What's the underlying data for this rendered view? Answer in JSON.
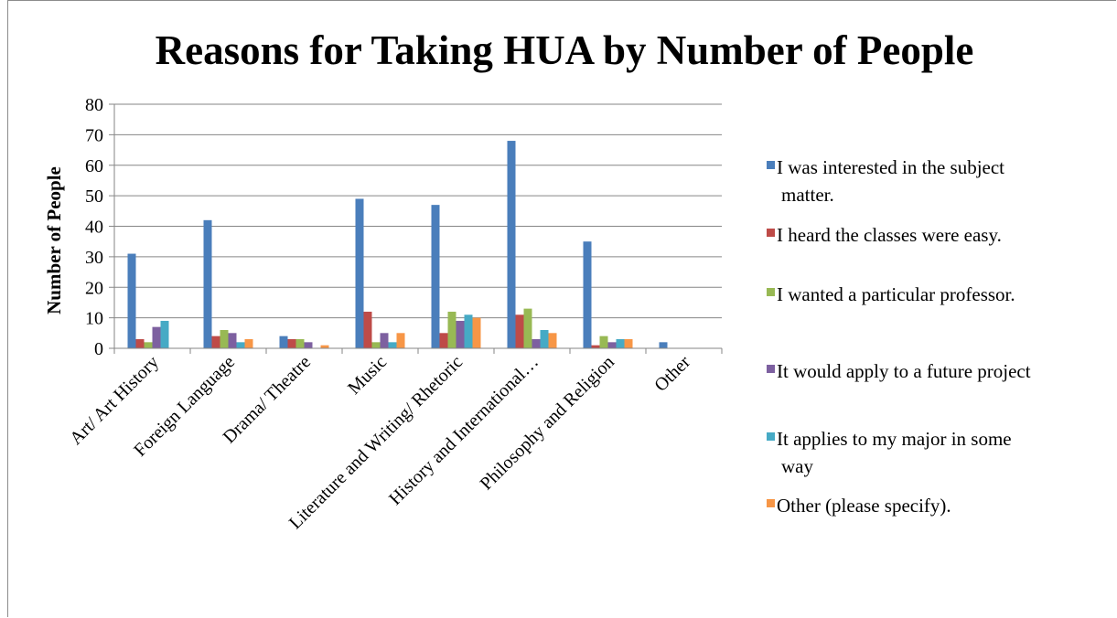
{
  "chart_data": {
    "type": "bar",
    "title": "Reasons for Taking HUA by Number of People",
    "xlabel": "",
    "ylabel": "Number of People",
    "ylim": [
      0,
      80
    ],
    "yticks": [
      0,
      10,
      20,
      30,
      40,
      50,
      60,
      70,
      80
    ],
    "grid": true,
    "legend_position": "right",
    "categories": [
      "Art/ Art History",
      "Foreign Language",
      "Drama/ Theatre",
      "Music",
      "Literature and Writing/ Rhetoric",
      "History and International…",
      "Philosophy and Religion",
      "Other"
    ],
    "series": [
      {
        "name": "I was interested in the subject matter.",
        "legend_lines": [
          "I was interested in the subject",
          "matter."
        ],
        "color": "#4a7ebb",
        "values": [
          31,
          42,
          4,
          49,
          47,
          68,
          35,
          2
        ]
      },
      {
        "name": "I heard the classes were easy.",
        "legend_lines": [
          "I heard the classes were easy."
        ],
        "color": "#be4b48",
        "values": [
          3,
          4,
          3,
          12,
          5,
          11,
          1,
          0
        ]
      },
      {
        "name": "I wanted a particular professor.",
        "legend_lines": [
          "I wanted a particular professor."
        ],
        "color": "#98b954",
        "values": [
          2,
          6,
          3,
          2,
          12,
          13,
          4,
          0
        ]
      },
      {
        "name": "It would apply to a future project",
        "legend_lines": [
          "It would apply to a future project"
        ],
        "color": "#7d60a0",
        "values": [
          7,
          5,
          2,
          5,
          9,
          3,
          2,
          0
        ]
      },
      {
        "name": "It applies to my major in some way",
        "legend_lines": [
          "It applies to my major in some",
          "way"
        ],
        "color": "#46aac5",
        "values": [
          9,
          2,
          0,
          2,
          11,
          6,
          3,
          0
        ]
      },
      {
        "name": "Other (please specify).",
        "legend_lines": [
          "Other (please specify)."
        ],
        "color": "#f79646",
        "values": [
          0,
          3,
          1,
          5,
          10,
          5,
          3,
          0
        ]
      }
    ]
  }
}
